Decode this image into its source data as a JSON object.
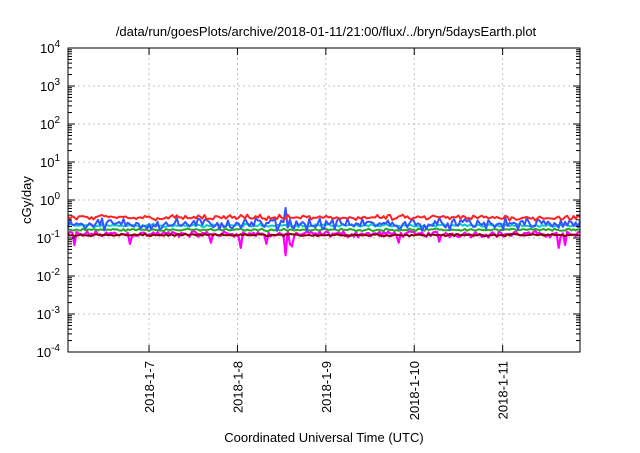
{
  "chart_data": {
    "type": "line",
    "title": "/data/run/goesPlots/archive/2018-01-11/21:00/flux/../bryn/5daysEarth.plot",
    "xlabel": "Coordinated Universal Time (UTC)",
    "ylabel": "cGy/day",
    "yscale": "log",
    "ylim": [
      0.0001,
      10000
    ],
    "xlim": [
      "2018-01-06T02:00",
      "2018-01-11T21:00"
    ],
    "grid": true,
    "y_ticks": [
      {
        "value": 0.0001,
        "base": "10",
        "exp": "-4"
      },
      {
        "value": 0.001,
        "base": "10",
        "exp": "-3"
      },
      {
        "value": 0.01,
        "base": "10",
        "exp": "-2"
      },
      {
        "value": 0.1,
        "base": "10",
        "exp": "-1"
      },
      {
        "value": 1,
        "base": "10",
        "exp": "0"
      },
      {
        "value": 10,
        "base": "10",
        "exp": "1"
      },
      {
        "value": 100,
        "base": "10",
        "exp": "2"
      },
      {
        "value": 1000,
        "base": "10",
        "exp": "3"
      },
      {
        "value": 10000,
        "base": "10",
        "exp": "4"
      }
    ],
    "x_ticks": [
      {
        "value": "2018-01-07T00:00",
        "label": "2018-1-7"
      },
      {
        "value": "2018-01-08T00:00",
        "label": "2018-1-8"
      },
      {
        "value": "2018-01-09T00:00",
        "label": "2018-1-9"
      },
      {
        "value": "2018-01-10T00:00",
        "label": "2018-1-10"
      },
      {
        "value": "2018-01-11T00:00",
        "label": "2018-1-11"
      }
    ],
    "series": [
      {
        "color": "#ff00ff",
        "low": 0.1,
        "high": 0.16,
        "dips": [
          [
            "2018-01-06T04:00",
            0.065
          ],
          [
            "2018-01-06T19:00",
            0.07
          ],
          [
            "2018-01-07T17:00",
            0.075
          ],
          [
            "2018-01-08T01:00",
            0.055
          ],
          [
            "2018-01-08T08:00",
            0.07
          ],
          [
            "2018-01-08T14:00",
            0.07
          ],
          [
            "2018-01-08T13:00",
            0.035
          ],
          [
            "2018-01-08T15:00",
            0.06
          ],
          [
            "2018-01-09T20:00",
            0.075
          ],
          [
            "2018-01-10T07:00",
            0.08
          ],
          [
            "2018-01-11T15:00",
            0.055
          ],
          [
            "2018-01-11T17:00",
            0.065
          ]
        ]
      },
      {
        "color": "#8b0000",
        "low": 0.11,
        "high": 0.13,
        "dips": []
      },
      {
        "color": "#22aa22",
        "low": 0.15,
        "high": 0.18,
        "dips": []
      },
      {
        "color": "#00cccc",
        "low": 0.19,
        "high": 0.24,
        "dips": []
      },
      {
        "color": "#3355ff",
        "low": 0.15,
        "high": 0.36,
        "dips": [
          [
            "2018-01-08T13:00",
            0.62
          ]
        ]
      },
      {
        "color": "#ff2222",
        "low": 0.28,
        "high": 0.42,
        "dips": []
      }
    ]
  }
}
